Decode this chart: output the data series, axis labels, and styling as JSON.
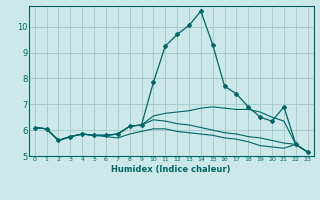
{
  "xlabel": "Humidex (Indice chaleur)",
  "ylabel": "",
  "bg_color": "#cce8e8",
  "grid_color": "#aacccc",
  "line_color": "#006666",
  "xlim": [
    -0.5,
    23.5
  ],
  "ylim": [
    5.0,
    10.8
  ],
  "yticks": [
    5,
    6,
    7,
    8,
    9,
    10
  ],
  "xticks": [
    0,
    1,
    2,
    3,
    4,
    5,
    6,
    7,
    8,
    9,
    10,
    11,
    12,
    13,
    14,
    15,
    16,
    17,
    18,
    19,
    20,
    21,
    22,
    23
  ],
  "series": [
    {
      "x": [
        0,
        1,
        2,
        3,
        4,
        5,
        6,
        7,
        8,
        9,
        10,
        11,
        12,
        13,
        14,
        15,
        16,
        17,
        18,
        19,
        20,
        21,
        22,
        23
      ],
      "y": [
        6.1,
        6.05,
        5.6,
        5.75,
        5.85,
        5.8,
        5.8,
        5.85,
        6.15,
        6.2,
        7.85,
        9.25,
        9.7,
        10.05,
        10.6,
        9.3,
        7.7,
        7.4,
        6.9,
        6.5,
        6.35,
        6.9,
        5.45,
        5.15
      ],
      "marker": true
    },
    {
      "x": [
        0,
        1,
        2,
        3,
        4,
        5,
        6,
        7,
        8,
        9,
        10,
        11,
        12,
        13,
        14,
        15,
        16,
        17,
        18,
        19,
        20,
        21,
        22,
        23
      ],
      "y": [
        6.1,
        6.05,
        5.6,
        5.75,
        5.85,
        5.8,
        5.8,
        5.85,
        6.15,
        6.2,
        6.55,
        6.65,
        6.7,
        6.75,
        6.85,
        6.9,
        6.85,
        6.8,
        6.8,
        6.7,
        6.5,
        6.35,
        5.45,
        5.15
      ],
      "marker": false
    },
    {
      "x": [
        0,
        1,
        2,
        3,
        4,
        5,
        6,
        7,
        8,
        9,
        10,
        11,
        12,
        13,
        14,
        15,
        16,
        17,
        18,
        19,
        20,
        21,
        22,
        23
      ],
      "y": [
        6.1,
        6.05,
        5.6,
        5.75,
        5.85,
        5.8,
        5.8,
        5.85,
        6.15,
        6.2,
        6.4,
        6.35,
        6.25,
        6.2,
        6.1,
        6.0,
        5.9,
        5.85,
        5.75,
        5.7,
        5.6,
        5.5,
        5.45,
        5.15
      ],
      "marker": false
    },
    {
      "x": [
        0,
        1,
        2,
        3,
        4,
        5,
        6,
        7,
        8,
        9,
        10,
        11,
        12,
        13,
        14,
        15,
        16,
        17,
        18,
        19,
        20,
        21,
        22,
        23
      ],
      "y": [
        6.1,
        6.05,
        5.6,
        5.75,
        5.85,
        5.8,
        5.75,
        5.7,
        5.85,
        5.95,
        6.05,
        6.05,
        5.95,
        5.9,
        5.85,
        5.8,
        5.7,
        5.65,
        5.55,
        5.4,
        5.35,
        5.3,
        5.45,
        5.15
      ],
      "marker": false
    }
  ]
}
